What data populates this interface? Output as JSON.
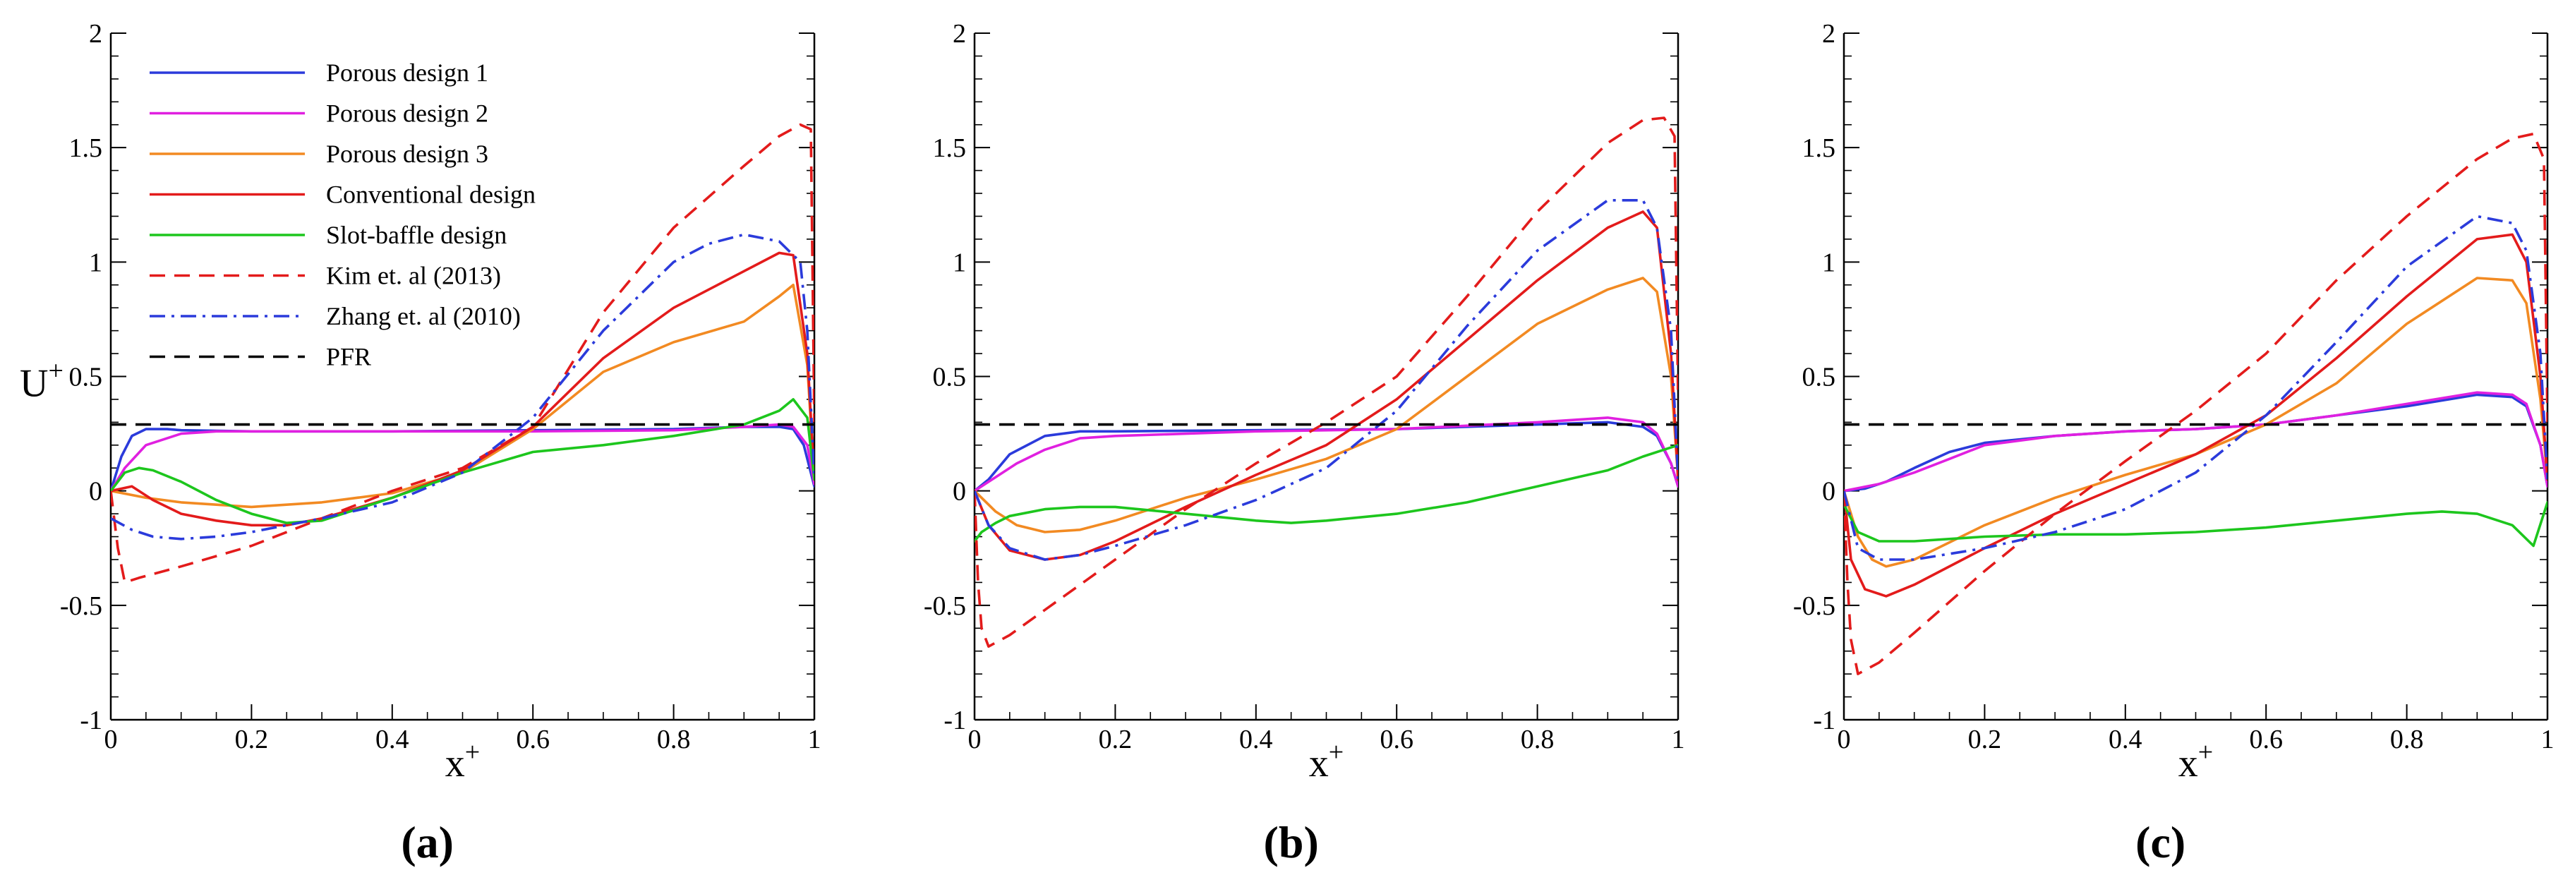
{
  "figure": {
    "x_axis_label": "x",
    "x_axis_sup": "+",
    "y_axis_label": "U",
    "y_axis_sup": "+"
  },
  "chart_data": [
    {
      "type": "line",
      "panel_label": "(a)",
      "xlabel": "x+",
      "ylabel": "U+",
      "xlim": [
        0,
        1
      ],
      "ylim": [
        -1,
        2
      ],
      "xticks": [
        0,
        0.2,
        0.4,
        0.6,
        0.8,
        1
      ],
      "xtick_labels": [
        "0",
        "0.2",
        "0.4",
        "0.6",
        "0.8",
        "1"
      ],
      "yticks": [
        -1,
        -0.5,
        0,
        0.5,
        1,
        1.5,
        2
      ],
      "ytick_labels": [
        "-1",
        "-0.5",
        "0",
        "0.5",
        "1",
        "1.5",
        "2"
      ],
      "legend_position": "top-left",
      "series": [
        {
          "name": "Porous design 1",
          "color": "#2b3bdb",
          "dash": "solid",
          "x": [
            0,
            0.015,
            0.03,
            0.05,
            0.08,
            0.1,
            0.2,
            0.4,
            0.6,
            0.8,
            0.9,
            0.95,
            0.97,
            0.985,
            1
          ],
          "y": [
            0,
            0.15,
            0.24,
            0.27,
            0.27,
            0.265,
            0.26,
            0.26,
            0.265,
            0.27,
            0.28,
            0.28,
            0.27,
            0.2,
            0.02
          ]
        },
        {
          "name": "Porous design 2",
          "color": "#e020e0",
          "dash": "solid",
          "x": [
            0,
            0.02,
            0.05,
            0.1,
            0.15,
            0.2,
            0.4,
            0.6,
            0.8,
            0.9,
            0.95,
            0.97,
            0.99,
            1
          ],
          "y": [
            0,
            0.1,
            0.2,
            0.25,
            0.26,
            0.26,
            0.26,
            0.26,
            0.265,
            0.28,
            0.29,
            0.28,
            0.2,
            0.03
          ]
        },
        {
          "name": "Porous design 3",
          "color": "#f28a22",
          "dash": "solid",
          "x": [
            0,
            0.05,
            0.1,
            0.2,
            0.3,
            0.4,
            0.5,
            0.6,
            0.7,
            0.8,
            0.9,
            0.95,
            0.97,
            0.99,
            1
          ],
          "y": [
            0,
            -0.03,
            -0.05,
            -0.07,
            -0.05,
            -0.01,
            0.08,
            0.27,
            0.52,
            0.65,
            0.74,
            0.85,
            0.9,
            0.55,
            0.05
          ]
        },
        {
          "name": "Conventional design",
          "color": "#e31b1b",
          "dash": "solid",
          "x": [
            0,
            0.03,
            0.06,
            0.1,
            0.15,
            0.2,
            0.25,
            0.3,
            0.4,
            0.5,
            0.6,
            0.7,
            0.8,
            0.9,
            0.95,
            0.97,
            0.99,
            1
          ],
          "y": [
            0,
            0.02,
            -0.04,
            -0.1,
            -0.13,
            -0.15,
            -0.15,
            -0.12,
            -0.03,
            0.09,
            0.28,
            0.58,
            0.8,
            0.96,
            1.04,
            1.03,
            0.6,
            0.05
          ]
        },
        {
          "name": "Slot-baffle design",
          "color": "#1dc61d",
          "dash": "solid",
          "x": [
            0,
            0.02,
            0.04,
            0.06,
            0.1,
            0.15,
            0.2,
            0.25,
            0.3,
            0.4,
            0.5,
            0.6,
            0.7,
            0.8,
            0.9,
            0.95,
            0.97,
            0.99,
            1
          ],
          "y": [
            0,
            0.08,
            0.1,
            0.09,
            0.04,
            -0.04,
            -0.1,
            -0.14,
            -0.13,
            -0.03,
            0.08,
            0.17,
            0.2,
            0.24,
            0.29,
            0.35,
            0.4,
            0.32,
            0.05
          ]
        },
        {
          "name": "Kim et. al (2013)",
          "color": "#e31b1b",
          "dash": "dashed",
          "x": [
            0,
            0.01,
            0.02,
            0.04,
            0.1,
            0.2,
            0.3,
            0.4,
            0.5,
            0.6,
            0.7,
            0.8,
            0.9,
            0.95,
            0.98,
            0.995,
            1
          ],
          "y": [
            0,
            -0.25,
            -0.4,
            -0.38,
            -0.33,
            -0.24,
            -0.12,
            0.0,
            0.1,
            0.28,
            0.78,
            1.15,
            1.42,
            1.55,
            1.6,
            1.58,
            0.3
          ]
        },
        {
          "name": "Zhang et. al (2010)",
          "color": "#2b3bdb",
          "dash": "dashdot",
          "x": [
            0,
            0.03,
            0.06,
            0.1,
            0.15,
            0.2,
            0.3,
            0.4,
            0.5,
            0.6,
            0.7,
            0.8,
            0.85,
            0.9,
            0.95,
            0.98,
            0.99,
            1
          ],
          "y": [
            -0.12,
            -0.17,
            -0.2,
            -0.21,
            -0.2,
            -0.18,
            -0.12,
            -0.05,
            0.08,
            0.32,
            0.7,
            1.0,
            1.08,
            1.12,
            1.09,
            1.0,
            0.7,
            0.05
          ]
        },
        {
          "name": "PFR",
          "color": "#000000",
          "dash": "dashed",
          "x": [
            0,
            1
          ],
          "y": [
            0.29,
            0.29
          ]
        }
      ]
    },
    {
      "type": "line",
      "panel_label": "(b)",
      "xlabel": "x+",
      "ylabel": "",
      "xlim": [
        0,
        1
      ],
      "ylim": [
        -1,
        2
      ],
      "xticks": [
        0,
        0.2,
        0.4,
        0.6,
        0.8,
        1
      ],
      "xtick_labels": [
        "0",
        "0.2",
        "0.4",
        "0.6",
        "0.8",
        "1"
      ],
      "yticks": [
        -1,
        -0.5,
        0,
        0.5,
        1,
        1.5,
        2
      ],
      "ytick_labels": [
        "-1",
        "-0.5",
        "0",
        "0.5",
        "1",
        "1.5",
        "2"
      ],
      "series": [
        {
          "name": "Porous design 1",
          "color": "#2b3bdb",
          "dash": "solid",
          "x": [
            0,
            0.02,
            0.05,
            0.1,
            0.15,
            0.2,
            0.4,
            0.6,
            0.8,
            0.9,
            0.95,
            0.97,
            0.99,
            1
          ],
          "y": [
            0,
            0.05,
            0.16,
            0.24,
            0.26,
            0.26,
            0.265,
            0.27,
            0.29,
            0.3,
            0.28,
            0.24,
            0.12,
            0.02
          ]
        },
        {
          "name": "Porous design 2",
          "color": "#e020e0",
          "dash": "solid",
          "x": [
            0,
            0.03,
            0.06,
            0.1,
            0.15,
            0.2,
            0.3,
            0.4,
            0.6,
            0.8,
            0.9,
            0.95,
            0.97,
            0.99,
            1
          ],
          "y": [
            0,
            0.06,
            0.12,
            0.18,
            0.23,
            0.24,
            0.25,
            0.26,
            0.27,
            0.3,
            0.32,
            0.3,
            0.25,
            0.12,
            0.02
          ]
        },
        {
          "name": "Porous design 3",
          "color": "#f28a22",
          "dash": "solid",
          "x": [
            0,
            0.03,
            0.06,
            0.1,
            0.15,
            0.2,
            0.3,
            0.4,
            0.5,
            0.6,
            0.7,
            0.8,
            0.9,
            0.95,
            0.97,
            0.99,
            1
          ],
          "y": [
            0,
            -0.09,
            -0.15,
            -0.18,
            -0.17,
            -0.13,
            -0.03,
            0.05,
            0.14,
            0.27,
            0.5,
            0.73,
            0.88,
            0.93,
            0.87,
            0.5,
            0.05
          ]
        },
        {
          "name": "Conventional design",
          "color": "#e31b1b",
          "dash": "solid",
          "x": [
            0,
            0.02,
            0.05,
            0.1,
            0.15,
            0.2,
            0.3,
            0.4,
            0.5,
            0.6,
            0.7,
            0.8,
            0.9,
            0.95,
            0.97,
            0.99,
            1
          ],
          "y": [
            0,
            -0.15,
            -0.26,
            -0.3,
            -0.28,
            -0.22,
            -0.07,
            0.07,
            0.2,
            0.4,
            0.66,
            0.92,
            1.15,
            1.22,
            1.15,
            0.6,
            0.05
          ]
        },
        {
          "name": "Slot-baffle design",
          "color": "#1dc61d",
          "dash": "solid",
          "x": [
            0,
            0.01,
            0.03,
            0.05,
            0.1,
            0.15,
            0.2,
            0.3,
            0.4,
            0.45,
            0.5,
            0.6,
            0.7,
            0.8,
            0.9,
            0.95,
            1
          ],
          "y": [
            -0.22,
            -0.18,
            -0.14,
            -0.11,
            -0.08,
            -0.07,
            -0.07,
            -0.1,
            -0.13,
            -0.14,
            -0.13,
            -0.1,
            -0.05,
            0.02,
            0.09,
            0.15,
            0.2
          ]
        },
        {
          "name": "Kim et. al (2013)",
          "color": "#e31b1b",
          "dash": "dashed",
          "x": [
            0,
            0.005,
            0.01,
            0.02,
            0.05,
            0.1,
            0.2,
            0.3,
            0.4,
            0.5,
            0.6,
            0.7,
            0.8,
            0.9,
            0.95,
            0.98,
            0.995,
            1
          ],
          "y": [
            0,
            -0.4,
            -0.6,
            -0.68,
            -0.63,
            -0.52,
            -0.3,
            -0.08,
            0.12,
            0.3,
            0.5,
            0.85,
            1.22,
            1.52,
            1.62,
            1.63,
            1.55,
            0.4
          ]
        },
        {
          "name": "Zhang et. al (2010)",
          "color": "#2b3bdb",
          "dash": "dashdot",
          "x": [
            0,
            0.02,
            0.05,
            0.1,
            0.15,
            0.2,
            0.3,
            0.4,
            0.5,
            0.6,
            0.7,
            0.8,
            0.9,
            0.95,
            0.97,
            0.99,
            1
          ],
          "y": [
            0,
            -0.15,
            -0.25,
            -0.3,
            -0.28,
            -0.24,
            -0.15,
            -0.04,
            0.1,
            0.35,
            0.72,
            1.05,
            1.27,
            1.27,
            1.15,
            0.7,
            0.05
          ]
        },
        {
          "name": "PFR",
          "color": "#000000",
          "dash": "dashed",
          "x": [
            0,
            1
          ],
          "y": [
            0.29,
            0.29
          ]
        }
      ]
    },
    {
      "type": "line",
      "panel_label": "(c)",
      "xlabel": "x+",
      "ylabel": "",
      "xlim": [
        0,
        1
      ],
      "ylim": [
        -1,
        2
      ],
      "xticks": [
        0,
        0.2,
        0.4,
        0.6,
        0.8,
        1
      ],
      "xtick_labels": [
        "0",
        "0.2",
        "0.4",
        "0.6",
        "0.8",
        "1"
      ],
      "yticks": [
        -1,
        -0.5,
        0,
        0.5,
        1,
        1.5,
        2
      ],
      "ytick_labels": [
        "-1",
        "-0.5",
        "0",
        "0.5",
        "1",
        "1.5",
        "2"
      ],
      "series": [
        {
          "name": "Porous design 1",
          "color": "#2b3bdb",
          "dash": "solid",
          "x": [
            0,
            0.03,
            0.06,
            0.1,
            0.15,
            0.2,
            0.3,
            0.4,
            0.5,
            0.6,
            0.7,
            0.8,
            0.9,
            0.95,
            0.97,
            0.99,
            1
          ],
          "y": [
            0,
            0.01,
            0.04,
            0.1,
            0.17,
            0.21,
            0.24,
            0.26,
            0.27,
            0.29,
            0.33,
            0.37,
            0.42,
            0.41,
            0.37,
            0.2,
            0.02
          ]
        },
        {
          "name": "Porous design 2",
          "color": "#e020e0",
          "dash": "solid",
          "x": [
            0,
            0.05,
            0.1,
            0.15,
            0.2,
            0.3,
            0.4,
            0.5,
            0.6,
            0.7,
            0.8,
            0.9,
            0.95,
            0.97,
            0.99,
            1
          ],
          "y": [
            0,
            0.03,
            0.08,
            0.14,
            0.2,
            0.24,
            0.26,
            0.27,
            0.29,
            0.33,
            0.38,
            0.43,
            0.42,
            0.38,
            0.2,
            0.02
          ]
        },
        {
          "name": "Porous design 3",
          "color": "#f28a22",
          "dash": "solid",
          "x": [
            0,
            0.02,
            0.04,
            0.06,
            0.1,
            0.2,
            0.3,
            0.4,
            0.5,
            0.6,
            0.7,
            0.8,
            0.9,
            0.95,
            0.97,
            0.99,
            1
          ],
          "y": [
            0,
            -0.2,
            -0.3,
            -0.33,
            -0.3,
            -0.15,
            -0.03,
            0.07,
            0.16,
            0.29,
            0.47,
            0.73,
            0.93,
            0.92,
            0.82,
            0.4,
            0.05
          ]
        },
        {
          "name": "Conventional design",
          "color": "#e31b1b",
          "dash": "solid",
          "x": [
            0,
            0.01,
            0.03,
            0.06,
            0.1,
            0.2,
            0.3,
            0.4,
            0.5,
            0.6,
            0.7,
            0.8,
            0.9,
            0.95,
            0.97,
            0.99,
            1
          ],
          "y": [
            0,
            -0.3,
            -0.43,
            -0.46,
            -0.41,
            -0.25,
            -0.1,
            0.03,
            0.16,
            0.33,
            0.58,
            0.85,
            1.1,
            1.12,
            1.0,
            0.5,
            0.05
          ]
        },
        {
          "name": "Slot-baffle design",
          "color": "#1dc61d",
          "dash": "solid",
          "x": [
            0,
            0.02,
            0.05,
            0.1,
            0.2,
            0.3,
            0.4,
            0.5,
            0.6,
            0.7,
            0.8,
            0.85,
            0.9,
            0.95,
            0.98,
            1
          ],
          "y": [
            -0.06,
            -0.18,
            -0.22,
            -0.22,
            -0.2,
            -0.19,
            -0.19,
            -0.18,
            -0.16,
            -0.13,
            -0.1,
            -0.09,
            -0.1,
            -0.15,
            -0.24,
            -0.05
          ]
        },
        {
          "name": "Kim et. al (2013)",
          "color": "#e31b1b",
          "dash": "dashed",
          "x": [
            0,
            0.005,
            0.01,
            0.02,
            0.05,
            0.1,
            0.2,
            0.3,
            0.4,
            0.5,
            0.6,
            0.7,
            0.8,
            0.9,
            0.95,
            0.98,
            0.995,
            1
          ],
          "y": [
            0,
            -0.4,
            -0.65,
            -0.8,
            -0.75,
            -0.62,
            -0.35,
            -0.1,
            0.13,
            0.35,
            0.6,
            0.92,
            1.2,
            1.45,
            1.54,
            1.56,
            1.45,
            0.3
          ]
        },
        {
          "name": "Zhang et. al (2010)",
          "color": "#2b3bdb",
          "dash": "dashdot",
          "x": [
            0,
            0.02,
            0.05,
            0.1,
            0.2,
            0.3,
            0.4,
            0.5,
            0.6,
            0.7,
            0.8,
            0.9,
            0.95,
            0.97,
            0.99,
            1
          ],
          "y": [
            0,
            -0.25,
            -0.3,
            -0.3,
            -0.25,
            -0.18,
            -0.08,
            0.08,
            0.33,
            0.65,
            0.98,
            1.2,
            1.17,
            1.05,
            0.6,
            0.05
          ]
        },
        {
          "name": "PFR",
          "color": "#000000",
          "dash": "dashed",
          "x": [
            0,
            1
          ],
          "y": [
            0.29,
            0.29
          ]
        }
      ]
    }
  ]
}
